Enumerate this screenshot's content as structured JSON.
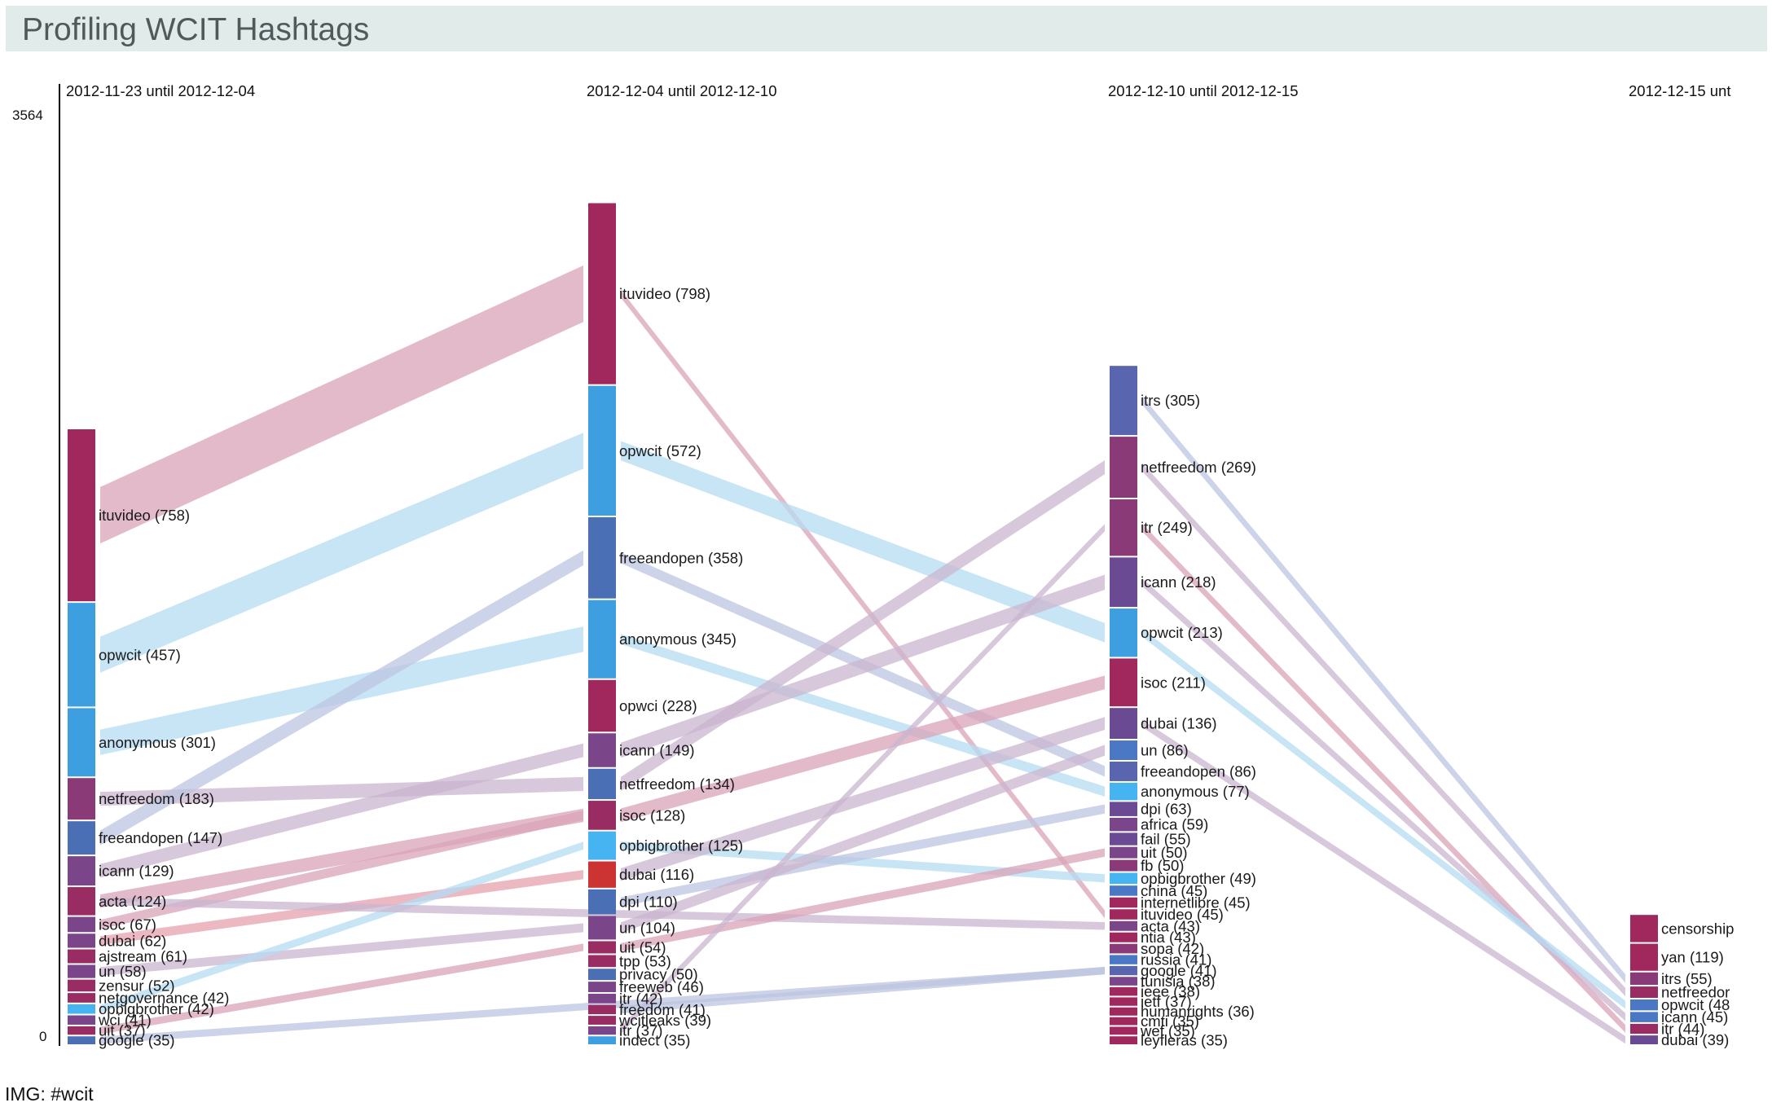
{
  "page": {
    "title": "Profiling WCIT Hashtags",
    "caption": "IMG: #wcit"
  },
  "chart_data": {
    "type": "alluvial",
    "title": "Profiling WCIT Hashtags",
    "ylim": [
      0,
      3564
    ],
    "y_tick_labels": [
      "3564",
      "0"
    ],
    "columns": [
      {
        "label": "2012-11-23 until 2012-12-04",
        "nodes": [
          {
            "name": "ituvideo",
            "value": 758,
            "label": "ituvideo (758)",
            "color": "#a0285d"
          },
          {
            "name": "opwcit",
            "value": 457,
            "label": "opwcit (457)",
            "color": "#3d9ee0"
          },
          {
            "name": "anonymous",
            "value": 301,
            "label": "anonymous (301)",
            "color": "#3d9ee0"
          },
          {
            "name": "netfreedom",
            "value": 183,
            "label": "netfreedom (183)",
            "color": "#8a3a76"
          },
          {
            "name": "freeandopen",
            "value": 147,
            "label": "freeandopen (147)",
            "color": "#4b6fb5"
          },
          {
            "name": "icann",
            "value": 129,
            "label": "icann (129)",
            "color": "#7a4689"
          },
          {
            "name": "acta",
            "value": 124,
            "label": "acta (124)",
            "color": "#9a2c64"
          },
          {
            "name": "isoc",
            "value": 67,
            "label": "isoc (67)",
            "color": "#7a4689"
          },
          {
            "name": "dubai",
            "value": 62,
            "label": "dubai (62)",
            "color": "#7a4689"
          },
          {
            "name": "ajstream",
            "value": 61,
            "label": "ajstream (61)",
            "color": "#9a2c64"
          },
          {
            "name": "un",
            "value": 58,
            "label": "un (58)",
            "color": "#7a4689"
          },
          {
            "name": "zensur",
            "value": 52,
            "label": "zensur (52)",
            "color": "#9a2c64"
          },
          {
            "name": "netgovernance",
            "value": 42,
            "label": "netgovernance (42)",
            "color": "#9a2c64"
          },
          {
            "name": "opbigbrother",
            "value": 42,
            "label": "opbigbrother (42)",
            "color": "#45b4f0"
          },
          {
            "name": "wci",
            "value": 41,
            "label": "wci (41)",
            "color": "#7a4689"
          },
          {
            "name": "uit",
            "value": 37,
            "label": "uit (37)",
            "color": "#9a2c64"
          },
          {
            "name": "google",
            "value": 35,
            "label": "google (35)",
            "color": "#4b6fb5"
          }
        ]
      },
      {
        "label": "2012-12-04 until 2012-12-10",
        "nodes": [
          {
            "name": "ituvideo",
            "value": 798,
            "label": "ituvideo (798)",
            "color": "#a0285d"
          },
          {
            "name": "opwcit",
            "value": 572,
            "label": "opwcit (572)",
            "color": "#3d9ee0"
          },
          {
            "name": "freeandopen",
            "value": 358,
            "label": "freeandopen (358)",
            "color": "#4b6fb5"
          },
          {
            "name": "anonymous",
            "value": 345,
            "label": "anonymous (345)",
            "color": "#3d9ee0"
          },
          {
            "name": "opwci",
            "value": 228,
            "label": "opwci (228)",
            "color": "#a0285d"
          },
          {
            "name": "icann",
            "value": 149,
            "label": "icann (149)",
            "color": "#7a4689"
          },
          {
            "name": "netfreedom",
            "value": 134,
            "label": "netfreedom (134)",
            "color": "#4b6fb5"
          },
          {
            "name": "isoc",
            "value": 128,
            "label": "isoc (128)",
            "color": "#9a2c64"
          },
          {
            "name": "opbigbrother",
            "value": 125,
            "label": "opbigbrother (125)",
            "color": "#45b4f0"
          },
          {
            "name": "dubai",
            "value": 116,
            "label": "dubai (116)",
            "color": "#cc3333"
          },
          {
            "name": "dpi",
            "value": 110,
            "label": "dpi (110)",
            "color": "#4b6fb5"
          },
          {
            "name": "un",
            "value": 104,
            "label": "un (104)",
            "color": "#7a4689"
          },
          {
            "name": "uit",
            "value": 54,
            "label": "uit (54)",
            "color": "#9a2c64"
          },
          {
            "name": "tpp",
            "value": 53,
            "label": "tpp (53)",
            "color": "#9a2c64"
          },
          {
            "name": "privacy",
            "value": 50,
            "label": "privacy (50)",
            "color": "#4b6fb5"
          },
          {
            "name": "freeweb",
            "value": 46,
            "label": "freeweb (46)",
            "color": "#7a4689"
          },
          {
            "name": "itr",
            "value": 42,
            "label": "itr (42)",
            "color": "#7a4689"
          },
          {
            "name": "freedom",
            "value": 41,
            "label": "freedom (41)",
            "color": "#9a2c64"
          },
          {
            "name": "wcitleaks",
            "value": 39,
            "label": "wcitleaks (39)",
            "color": "#9a2c64"
          },
          {
            "name": "itr",
            "value": 37,
            "label": "itr (37)",
            "color": "#7a4689"
          },
          {
            "name": "indect",
            "value": 35,
            "label": "indect (35)",
            "color": "#3d9ee0"
          }
        ]
      },
      {
        "label": "2012-12-10 until 2012-12-15",
        "nodes": [
          {
            "name": "itrs",
            "value": 305,
            "label": "itrs (305)",
            "color": "#5a65b0"
          },
          {
            "name": "netfreedom",
            "value": 269,
            "label": "netfreedom (269)",
            "color": "#8a3a76"
          },
          {
            "name": "itr",
            "value": 249,
            "label": "itr (249)",
            "color": "#8a3a76"
          },
          {
            "name": "icann",
            "value": 218,
            "label": "icann (218)",
            "color": "#6a4a92"
          },
          {
            "name": "opwcit",
            "value": 213,
            "label": "opwcit (213)",
            "color": "#3d9ee0"
          },
          {
            "name": "isoc",
            "value": 211,
            "label": "isoc (211)",
            "color": "#a0285d"
          },
          {
            "name": "dubai",
            "value": 136,
            "label": "dubai (136)",
            "color": "#6a4a92"
          },
          {
            "name": "un",
            "value": 86,
            "label": "un (86)",
            "color": "#4a78c4"
          },
          {
            "name": "freeandopen",
            "value": 86,
            "label": "freeandopen (86)",
            "color": "#5a65b0"
          },
          {
            "name": "anonymous",
            "value": 77,
            "label": "anonymous (77)",
            "color": "#45b4f0"
          },
          {
            "name": "dpi",
            "value": 63,
            "label": "dpi (63)",
            "color": "#6a4a92"
          },
          {
            "name": "africa",
            "value": 59,
            "label": "africa (59)",
            "color": "#7a4689"
          },
          {
            "name": "fail",
            "value": 55,
            "label": "fail (55)",
            "color": "#6a4a92"
          },
          {
            "name": "uit",
            "value": 50,
            "label": "uit (50)",
            "color": "#7a4689"
          },
          {
            "name": "fb",
            "value": 50,
            "label": "fb (50)",
            "color": "#8a3a76"
          },
          {
            "name": "opbigbrother",
            "value": 49,
            "label": "opbigbrother (49)",
            "color": "#45b4f0"
          },
          {
            "name": "china",
            "value": 45,
            "label": "china (45)",
            "color": "#4a78c4"
          },
          {
            "name": "internetlibre",
            "value": 45,
            "label": "internetlibre (45)",
            "color": "#a0285d"
          },
          {
            "name": "ituvideo",
            "value": 45,
            "label": "ituvideo (45)",
            "color": "#a0285d"
          },
          {
            "name": "acta",
            "value": 43,
            "label": "acta (43)",
            "color": "#7a4689"
          },
          {
            "name": "ntia",
            "value": 43,
            "label": "ntia (43)",
            "color": "#a0285d"
          },
          {
            "name": "sopa",
            "value": 42,
            "label": "sopa (42)",
            "color": "#8a3a76"
          },
          {
            "name": "russia",
            "value": 41,
            "label": "russia (41)",
            "color": "#4a78c4"
          },
          {
            "name": "google",
            "value": 41,
            "label": "google (41)",
            "color": "#5a65b0"
          },
          {
            "name": "tunisia",
            "value": 38,
            "label": "tunisia (38)",
            "color": "#7a4689"
          },
          {
            "name": "ieee",
            "value": 38,
            "label": "ieee (38)",
            "color": "#a0285d"
          },
          {
            "name": "ietf",
            "value": 37,
            "label": "ietf (37)",
            "color": "#a0285d"
          },
          {
            "name": "humanrights",
            "value": 36,
            "label": "humanrights (36)",
            "color": "#a0285d"
          },
          {
            "name": "cmti",
            "value": 35,
            "label": "cmti (35)",
            "color": "#a0285d"
          },
          {
            "name": "wef",
            "value": 35,
            "label": "wef (35)",
            "color": "#a0285d"
          },
          {
            "name": "leyfleras",
            "value": 35,
            "label": "leyfleras (35)",
            "color": "#a0285d"
          }
        ]
      },
      {
        "label": "2012-12-15 unt",
        "nodes": [
          {
            "name": "censorship",
            "value": 120,
            "label": "censorship",
            "color": "#a0285d"
          },
          {
            "name": "yan",
            "value": 119,
            "label": "yan (119)",
            "color": "#a0285d"
          },
          {
            "name": "itrs",
            "value": 55,
            "label": "itrs (55)",
            "color": "#8a3a76"
          },
          {
            "name": "netfreedom",
            "value": 50,
            "label": "netfreedor",
            "color": "#9a2c64"
          },
          {
            "name": "opwcit",
            "value": 48,
            "label": "opwcit (48",
            "color": "#4a78c4"
          },
          {
            "name": "icann",
            "value": 45,
            "label": "icann (45)",
            "color": "#4a78c4"
          },
          {
            "name": "itr",
            "value": 44,
            "label": "itr (44)",
            "color": "#9a2c64"
          },
          {
            "name": "dubai",
            "value": 39,
            "label": "dubai (39)",
            "color": "#6a4a92"
          }
        ]
      }
    ],
    "links": [
      {
        "from_col": 0,
        "from": "ituvideo",
        "to": "ituvideo",
        "color": "#d9a3b8"
      },
      {
        "from_col": 0,
        "from": "opwcit",
        "to": "opwcit",
        "color": "#b6dcf3"
      },
      {
        "from_col": 0,
        "from": "anonymous",
        "to": "anonymous",
        "color": "#b6dcf3"
      },
      {
        "from_col": 0,
        "from": "netfreedom",
        "to": "netfreedom",
        "color": "#c9b6cf"
      },
      {
        "from_col": 0,
        "from": "freeandopen",
        "to": "freeandopen",
        "color": "#bcc4e0"
      },
      {
        "from_col": 0,
        "from": "icann",
        "to": "icann",
        "color": "#c9b6cf"
      },
      {
        "from_col": 0,
        "from": "acta",
        "to": "isoc",
        "color": "#d9a3b8"
      },
      {
        "from_col": 0,
        "from": "isoc",
        "to": "isoc",
        "color": "#d9a3b8"
      },
      {
        "from_col": 0,
        "from": "dubai",
        "to": "dubai",
        "color": "#e6a0ac"
      },
      {
        "from_col": 0,
        "from": "un",
        "to": "un",
        "color": "#c9b6cf"
      },
      {
        "from_col": 0,
        "from": "opbigbrother",
        "to": "opbigbrother",
        "color": "#b6dcf3"
      },
      {
        "from_col": 0,
        "from": "uit",
        "to": "uit",
        "color": "#d9a3b8"
      },
      {
        "from_col": 0,
        "from": "acta",
        "to": "acta",
        "color": "#c9b6cf",
        "target_col": 2
      },
      {
        "from_col": 0,
        "from": "google",
        "to": "google",
        "color": "#bcc4e0",
        "target_col": 2
      },
      {
        "from_col": 1,
        "from": "ituvideo",
        "to": "ituvideo",
        "color": "#d9a3b8"
      },
      {
        "from_col": 1,
        "from": "opwcit",
        "to": "opwcit",
        "color": "#b6dcf3"
      },
      {
        "from_col": 1,
        "from": "freeandopen",
        "to": "freeandopen",
        "color": "#bcc4e0"
      },
      {
        "from_col": 1,
        "from": "anonymous",
        "to": "anonymous",
        "color": "#b6dcf3"
      },
      {
        "from_col": 1,
        "from": "icann",
        "to": "icann",
        "color": "#c9b6cf"
      },
      {
        "from_col": 1,
        "from": "netfreedom",
        "to": "netfreedom",
        "color": "#c9b6cf"
      },
      {
        "from_col": 1,
        "from": "isoc",
        "to": "isoc",
        "color": "#d9a3b8"
      },
      {
        "from_col": 1,
        "from": "opbigbrother",
        "to": "opbigbrother",
        "color": "#b6dcf3"
      },
      {
        "from_col": 1,
        "from": "dubai",
        "to": "dubai",
        "color": "#c9b6cf"
      },
      {
        "from_col": 1,
        "from": "dpi",
        "to": "dpi",
        "color": "#bcc4e0"
      },
      {
        "from_col": 1,
        "from": "un",
        "to": "un",
        "color": "#c9b6cf"
      },
      {
        "from_col": 1,
        "from": "uit",
        "to": "uit",
        "color": "#d9a3b8"
      },
      {
        "from_col": 1,
        "from": "itr",
        "to": "itr",
        "color": "#c9b6cf"
      },
      {
        "from_col": 1,
        "from": "freedom",
        "to": "google",
        "color": "#bcc4e0"
      },
      {
        "from_col": 2,
        "from": "itrs",
        "to": "itrs",
        "color": "#bcc4e0"
      },
      {
        "from_col": 2,
        "from": "netfreedom",
        "to": "netfreedom",
        "color": "#c9b6cf"
      },
      {
        "from_col": 2,
        "from": "itr",
        "to": "itr",
        "color": "#d9a3b8"
      },
      {
        "from_col": 2,
        "from": "icann",
        "to": "icann",
        "color": "#c9b6cf"
      },
      {
        "from_col": 2,
        "from": "opwcit",
        "to": "opwcit",
        "color": "#b6dcf3"
      },
      {
        "from_col": 2,
        "from": "dubai",
        "to": "dubai",
        "color": "#c9b6cf"
      }
    ]
  }
}
